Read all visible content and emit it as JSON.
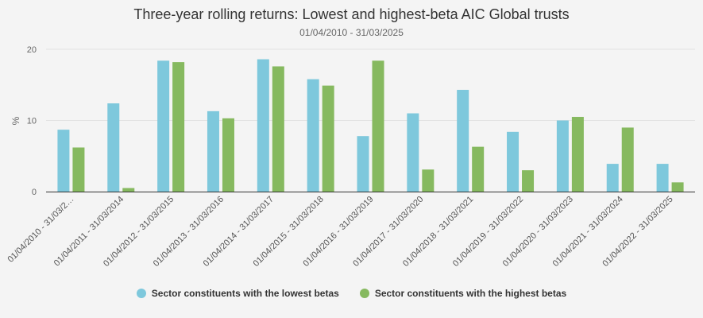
{
  "chart_data": {
    "type": "bar",
    "title": "Three-year rolling returns: Lowest and highest-beta AIC Global trusts",
    "subtitle": "01/04/2010 - 31/03/2025",
    "xlabel": "",
    "ylabel": "%",
    "ylim": [
      0,
      20
    ],
    "yticks": [
      0,
      10,
      20
    ],
    "grid": true,
    "categories": [
      "01/04/2010 - 31/03/2…",
      "01/04/2011 - 31/03/2014",
      "01/04/2012 - 31/03/2015",
      "01/04/2013 - 31/03/2016",
      "01/04/2014 - 31/03/2017",
      "01/04/2015 - 31/03/2018",
      "01/04/2016 - 31/03/2019",
      "01/04/2017 - 31/03/2020",
      "01/04/2018 - 31/03/2021",
      "01/04/2019 - 31/03/2022",
      "01/04/2020 - 31/03/2023",
      "01/04/2021 - 31/03/2024",
      "01/04/2022 - 31/03/2025"
    ],
    "series": [
      {
        "name": "Sector constituents with the lowest betas",
        "color": "#7ec8dc",
        "values": [
          8.7,
          12.4,
          18.4,
          11.3,
          18.6,
          15.8,
          7.8,
          11.0,
          14.3,
          8.4,
          10.0,
          3.9,
          3.9
        ]
      },
      {
        "name": "Sector constituents with the highest betas",
        "color": "#86b95f",
        "values": [
          6.2,
          0.5,
          18.2,
          10.3,
          17.6,
          14.9,
          18.4,
          3.1,
          6.3,
          3.0,
          10.5,
          9.0,
          1.3
        ]
      }
    ],
    "legend_position": "bottom-center"
  }
}
